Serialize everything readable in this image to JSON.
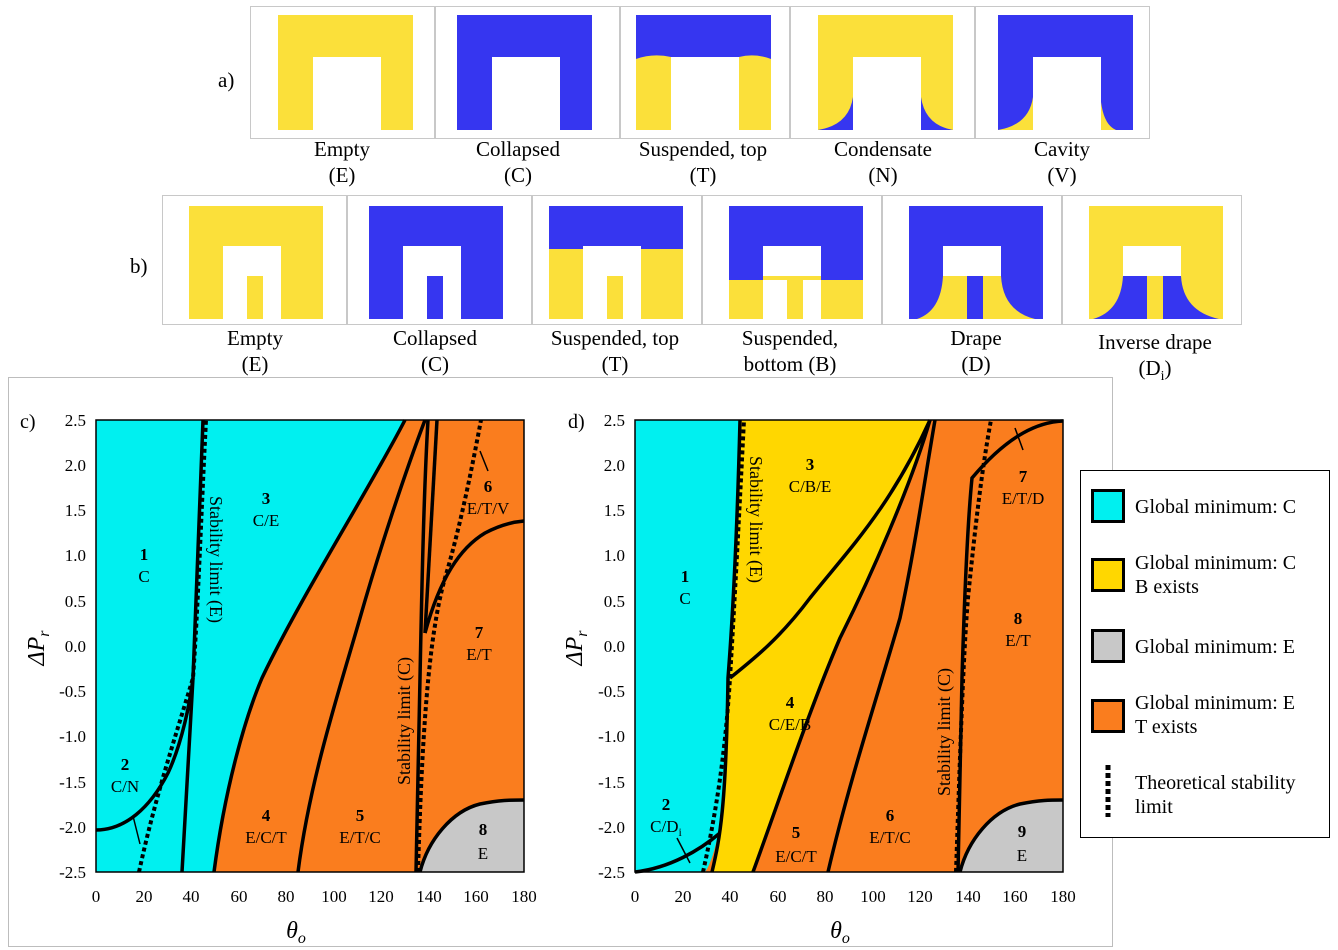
{
  "colors": {
    "yellow": "#fbe03a",
    "blue": "#3636f0",
    "cyan": "#00f0f0",
    "gold": "#ffd700",
    "gray": "#c8c8c8",
    "orange": "#fa7d1e"
  },
  "row_a": {
    "label": "a)",
    "tiles": [
      {
        "name": "Empty",
        "code": "(E)"
      },
      {
        "name": "Collapsed",
        "code": "(C)"
      },
      {
        "name": "Suspended, top",
        "code": "(T)"
      },
      {
        "name": "Condensate",
        "code": "(N)"
      },
      {
        "name": "Cavity",
        "code": "(V)"
      }
    ]
  },
  "row_b": {
    "label": "b)",
    "tiles": [
      {
        "name": "Empty",
        "code": "(E)"
      },
      {
        "name": "Collapsed",
        "code": "(C)"
      },
      {
        "name": "Suspended, top",
        "code": "(T)"
      },
      {
        "name": "Suspended,",
        "code": "bottom (B)"
      },
      {
        "name": "Drape",
        "code": "(D)"
      },
      {
        "name": "Inverse drape",
        "code": "(D",
        "code_sub": "i",
        "code_end": ")"
      }
    ]
  },
  "chart_c": {
    "label": "c)",
    "xlabel": "θ",
    "xlabel_sub": "o",
    "ylabel": "ΔP",
    "ylabel_sub": "r",
    "stability_e": "Stability limit (E)",
    "stability_c": "Stability limit (C)",
    "regions": [
      {
        "num": "1",
        "text": "C"
      },
      {
        "num": "2",
        "text": "C/N"
      },
      {
        "num": "3",
        "text": "C/E"
      },
      {
        "num": "4",
        "text": "E/C/T"
      },
      {
        "num": "5",
        "text": "E/T/C"
      },
      {
        "num": "6",
        "text": "E/T/V"
      },
      {
        "num": "7",
        "text": "E/T"
      },
      {
        "num": "8",
        "text": "E"
      }
    ]
  },
  "chart_d": {
    "label": "d)",
    "xlabel": "θ",
    "xlabel_sub": "o",
    "ylabel": "ΔP",
    "ylabel_sub": "r",
    "stability_e": "Stability limit (E)",
    "stability_c": "Stability limit (C)",
    "regions": [
      {
        "num": "1",
        "text": "C"
      },
      {
        "num": "2",
        "text": "C/D",
        "sub": "i"
      },
      {
        "num": "3",
        "text": "C/B/E"
      },
      {
        "num": "4",
        "text": "C/E/B"
      },
      {
        "num": "5",
        "text": "E/C/T"
      },
      {
        "num": "6",
        "text": "E/T/C"
      },
      {
        "num": "7",
        "text": "E/T/D"
      },
      {
        "num": "8",
        "text": "E/T"
      },
      {
        "num": "9",
        "text": "E"
      }
    ]
  },
  "axes": {
    "x_ticks": [
      "0",
      "20",
      "40",
      "60",
      "80",
      "100",
      "120",
      "140",
      "160",
      "180"
    ],
    "y_ticks": [
      "2.5",
      "2.0",
      "1.5",
      "1.0",
      "0.5",
      "0.0",
      "-0.5",
      "-1.0",
      "-1.5",
      "-2.0",
      "-2.5"
    ]
  },
  "legend": {
    "items": [
      {
        "line1": "Global minimum: C",
        "line2": ""
      },
      {
        "line1": "Global minimum: C",
        "line2": "B exists"
      },
      {
        "line1": "Global minimum: E",
        "line2": ""
      },
      {
        "line1": "Global minimum: E",
        "line2": "T exists"
      },
      {
        "line1": "Theoretical stability",
        "line2": "limit"
      }
    ]
  }
}
